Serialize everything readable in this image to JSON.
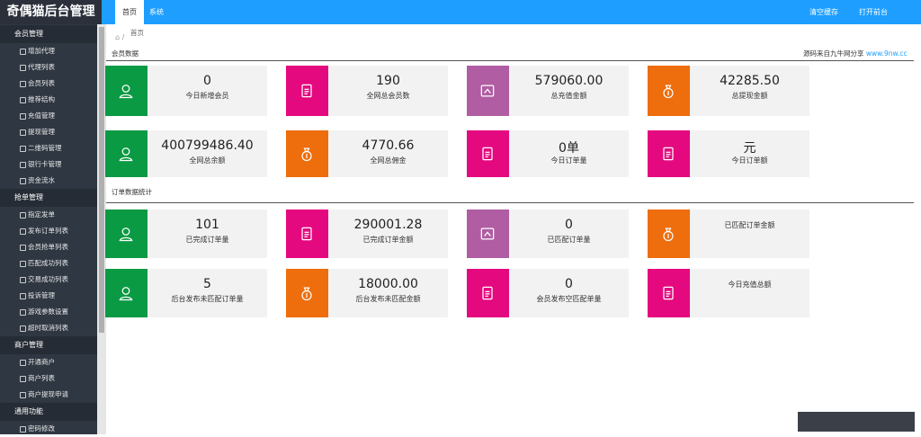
{
  "header": {
    "logo": "奇偶猫后台管理",
    "tabs": [
      "首页",
      "系统"
    ],
    "actions": [
      "清空缓存",
      "打开前台"
    ]
  },
  "sidebar": {
    "groups": [
      {
        "title": "会员管理",
        "items": [
          "增加代理",
          "代理列表",
          "会员列表",
          "推荐结构",
          "充值管理",
          "提现管理",
          "二维码管理",
          "银行卡管理",
          "资金流水"
        ]
      },
      {
        "title": "抢单管理",
        "items": [
          "指定发单",
          "发布订单列表",
          "会员抢单列表",
          "匹配成功列表",
          "交易成功列表",
          "投诉管理",
          "游戏参数设置",
          "超时取消列表"
        ]
      },
      {
        "title": "商户管理",
        "items": [
          "开通商户",
          "商户列表",
          "商户提现申请"
        ]
      },
      {
        "title": "通用功能",
        "items": [
          "密码修改"
        ]
      }
    ]
  },
  "breadcrumb": "首页",
  "sections": [
    {
      "title": "会员数据",
      "note": "源码来自九牛网分享 ",
      "link": "www.9nw.cc",
      "cards": [
        {
          "value": "0",
          "label": "今日新增会员",
          "color": "#0a9a43",
          "icon": "user"
        },
        {
          "value": "190",
          "label": "全网总会员数",
          "color": "#e5097f",
          "icon": "clip"
        },
        {
          "value": "579060.00",
          "label": "总充值金额",
          "color": "#b05da3",
          "icon": "card"
        },
        {
          "value": "42285.50",
          "label": "总提现金额",
          "color": "#ee6d0c",
          "icon": "bag"
        },
        {
          "value": "400799486.40",
          "label": "全网总余额",
          "color": "#0a9a43",
          "icon": "user"
        },
        {
          "value": "4770.66",
          "label": "全网总佣金",
          "color": "#ee6d0c",
          "icon": "bag"
        },
        {
          "value": "0单",
          "label": "今日订单量",
          "color": "#e5097f",
          "icon": "clip"
        },
        {
          "value": "元",
          "label": "今日订单额",
          "color": "#e5097f",
          "icon": "clip"
        }
      ]
    },
    {
      "title": "订单数据统计",
      "cards": [
        {
          "value": "101",
          "label": "已完成订单量",
          "color": "#0a9a43",
          "icon": "user"
        },
        {
          "value": "290001.28",
          "label": "已完成订单金额",
          "color": "#e5097f",
          "icon": "clip"
        },
        {
          "value": "0",
          "label": "已匹配订单量",
          "color": "#b05da3",
          "icon": "card"
        },
        {
          "label": "已匹配订单金额",
          "color": "#ee6d0c",
          "icon": "bag"
        },
        {
          "value": "5",
          "label": "后台发布未匹配订单量",
          "color": "#0a9a43",
          "icon": "user"
        },
        {
          "value": "18000.00",
          "label": "后台发布未匹配金额",
          "color": "#ee6d0c",
          "icon": "bag"
        },
        {
          "value": "0",
          "label": "会员发布空匹配单量",
          "color": "#e5097f",
          "icon": "clip"
        },
        {
          "label": "今日充值总额",
          "color": "#e5097f",
          "icon": "clip"
        }
      ]
    }
  ]
}
